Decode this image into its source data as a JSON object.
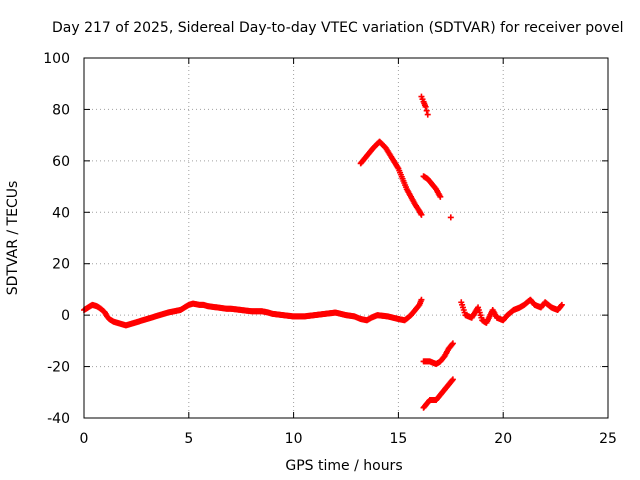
{
  "chart_data": {
    "type": "scatter",
    "title": "Day 217 of 2025, Sidereal Day-to-day VTEC variation (SDTVAR) for receiver povel",
    "xlabel": "GPS time / hours",
    "ylabel": "SDTVAR / TECUs",
    "xlim": [
      0,
      25
    ],
    "ylim": [
      -40,
      100
    ],
    "xticks": [
      0,
      5,
      10,
      15,
      20,
      25
    ],
    "yticks": [
      -40,
      -20,
      0,
      20,
      40,
      60,
      80,
      100
    ],
    "grid": true,
    "marker": "+",
    "colors": {
      "series": "#ff0000",
      "grid": "#a0a0a0",
      "axis": "#000000"
    },
    "series": [
      {
        "name": "main_trace",
        "x": [
          0.0,
          0.2,
          0.4,
          0.6,
          0.8,
          1.0,
          1.1,
          1.2,
          1.4,
          1.6,
          1.8,
          2.0,
          2.2,
          2.4,
          2.6,
          2.8,
          3.0,
          3.2,
          3.4,
          3.6,
          3.8,
          4.0,
          4.6,
          4.8,
          5.0,
          5.2,
          5.5,
          5.7,
          5.9,
          6.8,
          7.0,
          7.5,
          8.0,
          8.5,
          8.8,
          9.0,
          9.5,
          10.0,
          10.5,
          11.0,
          11.5,
          12.0,
          12.5,
          12.9,
          13.2,
          13.5,
          13.7,
          14.0,
          14.5,
          15.0,
          15.3,
          15.6,
          15.8,
          16.0,
          16.1
        ],
        "y": [
          2.0,
          3.0,
          4.0,
          3.5,
          2.5,
          1.0,
          -0.5,
          -1.5,
          -2.5,
          -3.0,
          -3.5,
          -4.0,
          -3.5,
          -3.0,
          -2.5,
          -2.0,
          -1.5,
          -1.0,
          -0.5,
          0.0,
          0.5,
          1.0,
          2.0,
          3.0,
          4.0,
          4.5,
          4.0,
          4.0,
          3.5,
          2.5,
          2.5,
          2.0,
          1.5,
          1.5,
          1.0,
          0.5,
          0.0,
          -0.5,
          -0.5,
          0.0,
          0.5,
          1.0,
          0.0,
          -0.5,
          -1.5,
          -2.0,
          -1.0,
          0.0,
          -0.5,
          -1.5,
          -2.0,
          0.0,
          2.0,
          4.0,
          6.0
        ]
      },
      {
        "name": "rising_arc",
        "x": [
          13.2,
          13.5,
          13.8,
          14.1,
          14.4,
          14.7,
          15.0,
          15.2,
          15.4,
          15.6,
          15.8,
          16.0,
          16.1
        ],
        "y": [
          59.0,
          62.0,
          65.0,
          67.5,
          65.0,
          61.0,
          57.0,
          53.0,
          49.0,
          46.0,
          43.0,
          40.5,
          39.0
        ]
      },
      {
        "name": "high_segment",
        "x": [
          16.1,
          16.2,
          16.3,
          16.4
        ],
        "y": [
          85.0,
          83.0,
          81.0,
          78.0
        ]
      },
      {
        "name": "mid_segment",
        "x": [
          16.2,
          16.4,
          16.6,
          16.8,
          17.0
        ],
        "y": [
          54.0,
          53.0,
          51.0,
          49.0,
          46.0
        ]
      },
      {
        "name": "isolated_point",
        "x": [
          17.5
        ],
        "y": [
          38.0
        ]
      },
      {
        "name": "negative_upper",
        "x": [
          16.2,
          16.5,
          16.8,
          17.0,
          17.2,
          17.4,
          17.6
        ],
        "y": [
          -18.0,
          -18.0,
          -19.0,
          -18.0,
          -16.0,
          -13.0,
          -11.0
        ]
      },
      {
        "name": "negative_lower",
        "x": [
          16.2,
          16.5,
          16.8,
          17.0,
          17.3,
          17.6
        ],
        "y": [
          -36.0,
          -33.0,
          -33.0,
          -31.0,
          -28.0,
          -25.0
        ]
      },
      {
        "name": "late_trace",
        "x": [
          18.0,
          18.2,
          18.5,
          18.8,
          19.0,
          19.2,
          19.5,
          19.7,
          20.0,
          20.2,
          20.5,
          20.8,
          21.0,
          21.3,
          21.5,
          21.8,
          22.0,
          22.3,
          22.6,
          22.8
        ],
        "y": [
          5.0,
          0.0,
          -1.0,
          3.0,
          -2.0,
          -3.0,
          2.0,
          -1.0,
          -2.0,
          0.0,
          2.0,
          3.0,
          4.0,
          6.0,
          4.0,
          3.0,
          5.0,
          3.0,
          2.0,
          4.0
        ]
      }
    ]
  }
}
